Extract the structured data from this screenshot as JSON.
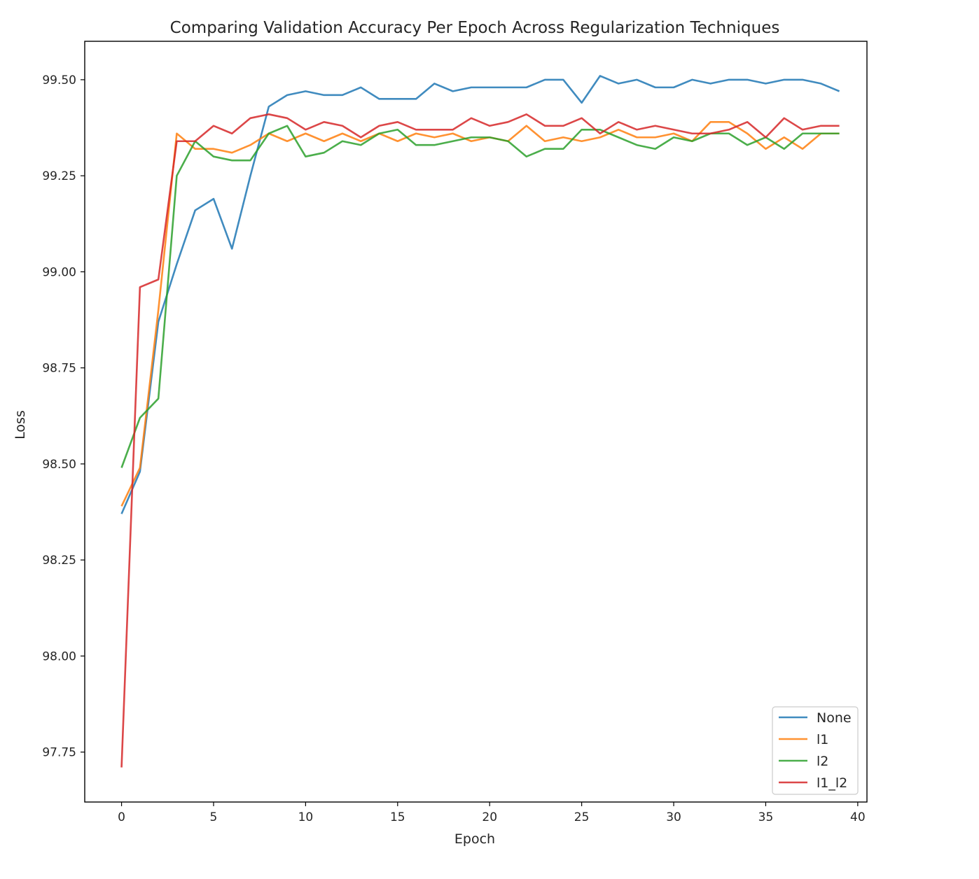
{
  "chart_data": {
    "type": "line",
    "title": "Comparing Validation Accuracy Per Epoch Across Regularization Techniques",
    "xlabel": "Epoch",
    "ylabel": "Loss",
    "xlim": [
      -2,
      40.5
    ],
    "ylim": [
      97.62,
      99.6
    ],
    "xticks": [
      0,
      5,
      10,
      15,
      20,
      25,
      30,
      35,
      40
    ],
    "yticks": [
      97.75,
      98.0,
      98.25,
      98.5,
      98.75,
      99.0,
      99.25,
      99.5
    ],
    "ytick_labels": [
      "97.75",
      "98.00",
      "98.25",
      "98.50",
      "98.75",
      "99.00",
      "99.25",
      "99.50"
    ],
    "grid": false,
    "legend_position": "lower-right",
    "x": [
      0,
      1,
      2,
      3,
      4,
      5,
      6,
      7,
      8,
      9,
      10,
      11,
      12,
      13,
      14,
      15,
      16,
      17,
      18,
      19,
      20,
      21,
      22,
      23,
      24,
      25,
      26,
      27,
      28,
      29,
      30,
      31,
      32,
      33,
      34,
      35,
      36,
      37,
      38,
      39
    ],
    "series": [
      {
        "name": "None",
        "color": "#1f77b4",
        "values": [
          98.37,
          98.48,
          98.87,
          99.02,
          99.16,
          99.19,
          99.06,
          99.25,
          99.43,
          99.46,
          99.47,
          99.46,
          99.46,
          99.48,
          99.45,
          99.45,
          99.45,
          99.49,
          99.47,
          99.48,
          99.48,
          99.48,
          99.48,
          99.5,
          99.5,
          99.44,
          99.51,
          99.49,
          99.5,
          99.48,
          99.48,
          99.5,
          99.49,
          99.5,
          99.5,
          99.49,
          99.5,
          99.5,
          99.49,
          99.47
        ]
      },
      {
        "name": "l1",
        "color": "#ff7f0e",
        "values": [
          98.39,
          98.49,
          98.9,
          99.36,
          99.32,
          99.32,
          99.31,
          99.33,
          99.36,
          99.34,
          99.36,
          99.34,
          99.36,
          99.34,
          99.36,
          99.34,
          99.36,
          99.35,
          99.36,
          99.34,
          99.35,
          99.34,
          99.38,
          99.34,
          99.35,
          99.34,
          99.35,
          99.37,
          99.35,
          99.35,
          99.36,
          99.34,
          99.39,
          99.39,
          99.36,
          99.32,
          99.35,
          99.32,
          99.36,
          99.36
        ]
      },
      {
        "name": "l2",
        "color": "#2ca02c",
        "values": [
          98.49,
          98.62,
          98.67,
          99.25,
          99.34,
          99.3,
          99.29,
          99.29,
          99.36,
          99.38,
          99.3,
          99.31,
          99.34,
          99.33,
          99.36,
          99.37,
          99.33,
          99.33,
          99.34,
          99.35,
          99.35,
          99.34,
          99.3,
          99.32,
          99.32,
          99.37,
          99.37,
          99.35,
          99.33,
          99.32,
          99.35,
          99.34,
          99.36,
          99.36,
          99.33,
          99.35,
          99.32,
          99.36,
          99.36,
          99.36
        ]
      },
      {
        "name": "l1_l2",
        "color": "#d62728",
        "values": [
          97.71,
          98.96,
          98.98,
          99.34,
          99.34,
          99.38,
          99.36,
          99.4,
          99.41,
          99.4,
          99.37,
          99.39,
          99.38,
          99.35,
          99.38,
          99.39,
          99.37,
          99.37,
          99.37,
          99.4,
          99.38,
          99.39,
          99.41,
          99.38,
          99.38,
          99.4,
          99.36,
          99.39,
          99.37,
          99.38,
          99.37,
          99.36,
          99.36,
          99.37,
          99.39,
          99.35,
          99.4,
          99.37,
          99.38,
          99.38
        ]
      }
    ]
  }
}
